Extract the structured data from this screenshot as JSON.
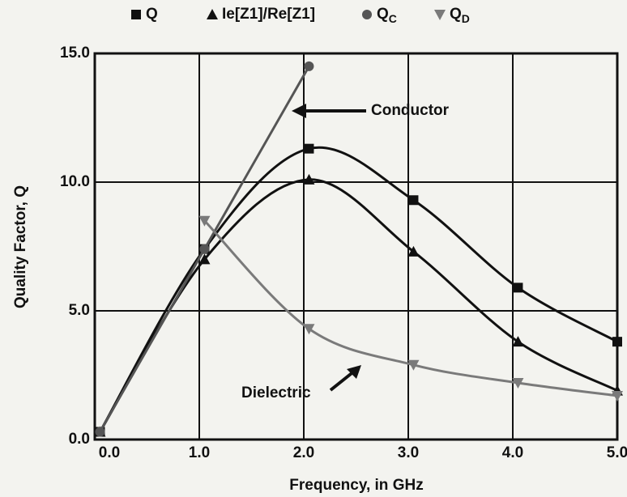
{
  "chart_data": {
    "type": "line",
    "x_label": "Frequency, in GHz",
    "y_label": "Quality Factor, Q",
    "xlim": [
      0,
      5
    ],
    "ylim": [
      0,
      15
    ],
    "xticks": [
      {
        "value": 0,
        "label": "0.0"
      },
      {
        "value": 1,
        "label": "1.0"
      },
      {
        "value": 2,
        "label": "2.0"
      },
      {
        "value": 3,
        "label": "3.0"
      },
      {
        "value": 4,
        "label": "4.0"
      },
      {
        "value": 5,
        "label": "5.0"
      }
    ],
    "yticks": [
      {
        "value": 0,
        "label": "0.0"
      },
      {
        "value": 5,
        "label": "5.0"
      },
      {
        "value": 10,
        "label": "10.0"
      },
      {
        "value": 15,
        "label": "15.0"
      }
    ],
    "grid": true,
    "series": [
      {
        "name": "Q",
        "color": "#111111",
        "marker": "square",
        "x": [
          0.05,
          1.05,
          2.05,
          3.05,
          4.05,
          5.0
        ],
        "values": [
          0.3,
          7.4,
          11.3,
          9.3,
          5.9,
          3.8
        ]
      },
      {
        "name": "Ie[Z1]/Re[Z1]",
        "color": "#111111",
        "marker": "triangle-up",
        "x": [
          0.05,
          1.05,
          2.05,
          3.05,
          4.05,
          5.0
        ],
        "values": [
          0.3,
          7.0,
          10.1,
          7.3,
          3.8,
          1.9
        ]
      },
      {
        "name": "QC",
        "color": "#555555",
        "marker": "circle",
        "x": [
          0.05,
          1.05,
          2.05
        ],
        "values": [
          0.3,
          7.4,
          14.5
        ]
      },
      {
        "name": "QD",
        "color": "#7a7a7a",
        "marker": "triangle-down",
        "x": [
          1.05,
          2.05,
          3.05,
          4.05,
          5.0
        ],
        "values": [
          8.5,
          4.3,
          2.9,
          2.2,
          1.7
        ]
      }
    ],
    "annotations": [
      "Conductor",
      "Dielectric"
    ]
  }
}
